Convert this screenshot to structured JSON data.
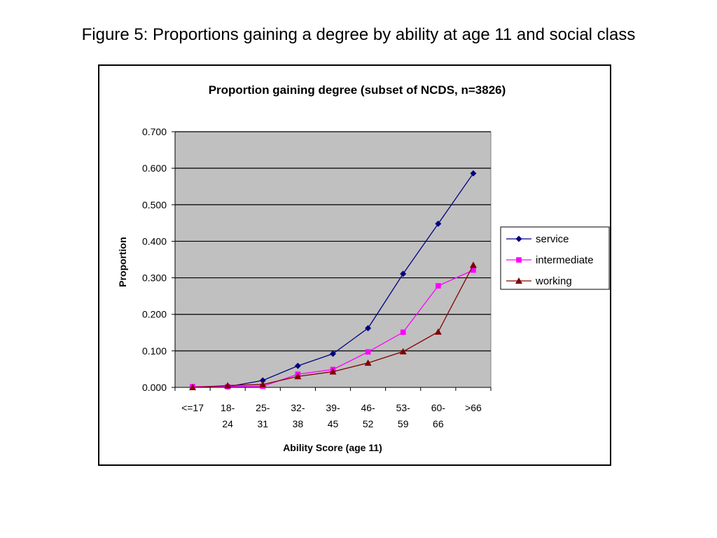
{
  "slide": {
    "title": "Figure 5: Proportions gaining a degree by ability at age 11 and social class"
  },
  "chart_data": {
    "type": "line",
    "title": "Proportion gaining degree (subset of NCDS, n=3826)",
    "xlabel": "Ability Score (age 11)",
    "ylabel": "Proportion",
    "ylim": [
      0,
      0.7
    ],
    "y_ticks": [
      "0.000",
      "0.100",
      "0.200",
      "0.300",
      "0.400",
      "0.500",
      "0.600",
      "0.700"
    ],
    "categories": [
      [
        "<=17"
      ],
      [
        "18-",
        "24"
      ],
      [
        "25-",
        "31"
      ],
      [
        "32-",
        "38"
      ],
      [
        "39-",
        "45"
      ],
      [
        "46-",
        "52"
      ],
      [
        "53-",
        "59"
      ],
      [
        "60-",
        "66"
      ],
      [
        ">66"
      ]
    ],
    "grid": true,
    "legend_position": "right",
    "series": [
      {
        "name": "service",
        "color": "#000080",
        "marker": "diamond",
        "values": [
          0.001,
          0.002,
          0.019,
          0.059,
          0.092,
          0.162,
          0.311,
          0.448,
          0.586
        ]
      },
      {
        "name": "intermediate",
        "color": "#ff00ff",
        "marker": "square",
        "values": [
          0.002,
          0.002,
          0.003,
          0.036,
          0.049,
          0.097,
          0.151,
          0.278,
          0.321
        ]
      },
      {
        "name": "working",
        "color": "#800000",
        "marker": "triangle",
        "values": [
          0.0,
          0.005,
          0.008,
          0.03,
          0.043,
          0.067,
          0.098,
          0.152,
          0.335
        ]
      }
    ]
  }
}
